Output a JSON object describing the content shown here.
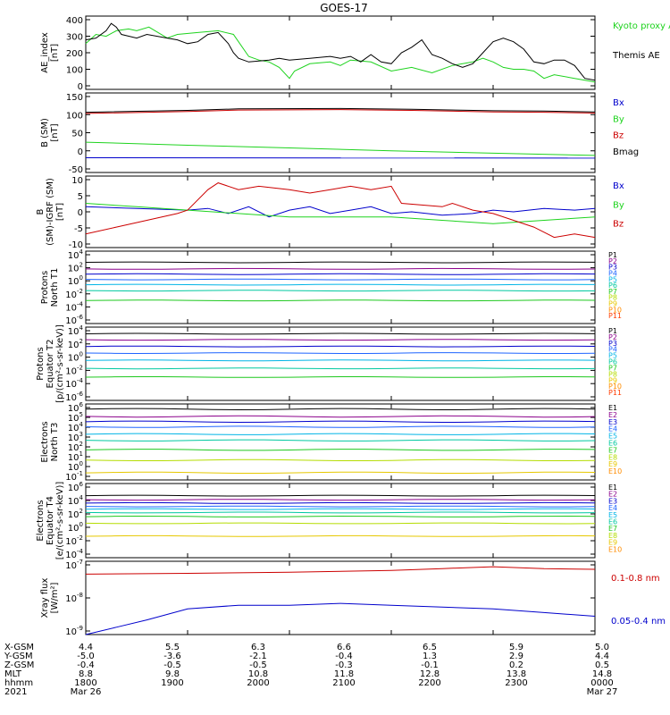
{
  "title": "GOES-17",
  "colors": {
    "black": "#000000",
    "green": "#1ed31e",
    "blue": "#0000cc",
    "red": "#cc0000",
    "p": [
      "#000000",
      "#8b008b",
      "#0000cc",
      "#1e64ff",
      "#00b4e6",
      "#00c8a0",
      "#1ec81e",
      "#b4dc00",
      "#e6c800",
      "#ff8c00",
      "#ff3c00",
      "#cc0000"
    ],
    "e": [
      "#000000",
      "#8b008b",
      "#0000cc",
      "#1e64ff",
      "#00b4e6",
      "#00c8a0",
      "#1ec81e",
      "#b4dc00",
      "#e6c800",
      "#ff8c00",
      "#cc0000"
    ]
  },
  "chart_data": [
    {
      "type": "line",
      "ylabel": "AE_index [nT]",
      "yticks": [
        "400",
        "300",
        "200",
        "100",
        "0"
      ],
      "ylim": [
        0,
        400
      ],
      "legend": [
        "Kyoto proxy AE",
        "Themis AE"
      ],
      "series": [
        {
          "name": "Kyoto proxy AE",
          "color": "green",
          "x": [
            0,
            0.1,
            0.2,
            0.3,
            0.42,
            0.5,
            0.62,
            0.8,
            0.9,
            1.1,
            1.3,
            1.45,
            1.5,
            1.6,
            1.7,
            1.8,
            1.9,
            2.0,
            2.05,
            2.2,
            2.4,
            2.5,
            2.6,
            2.8,
            3.0,
            3.2,
            3.4,
            3.6,
            3.8,
            3.9,
            4.0,
            4.1,
            4.2,
            4.3,
            4.4,
            4.5,
            4.6,
            4.8,
            5.0
          ],
          "values": [
            250,
            300,
            290,
            320,
            330,
            320,
            340,
            280,
            300,
            310,
            320,
            300,
            260,
            180,
            160,
            150,
            120,
            60,
            100,
            140,
            150,
            130,
            160,
            150,
            100,
            120,
            90,
            130,
            150,
            170,
            150,
            120,
            110,
            110,
            100,
            60,
            80,
            60,
            40
          ]
        },
        {
          "name": "Themis AE",
          "color": "black",
          "x": [
            0,
            0.1,
            0.2,
            0.25,
            0.3,
            0.35,
            0.5,
            0.6,
            0.8,
            0.9,
            1.0,
            1.1,
            1.2,
            1.3,
            1.4,
            1.45,
            1.5,
            1.6,
            1.8,
            1.9,
            2.0,
            2.2,
            2.4,
            2.5,
            2.6,
            2.7,
            2.75,
            2.8,
            2.9,
            3.0,
            3.1,
            3.2,
            3.3,
            3.4,
            3.5,
            3.6,
            3.7,
            3.8,
            3.9,
            4.0,
            4.1,
            4.2,
            4.3,
            4.4,
            4.5,
            4.6,
            4.7,
            4.8,
            4.9,
            5.0
          ],
          "values": [
            270,
            280,
            320,
            360,
            340,
            300,
            280,
            300,
            280,
            270,
            250,
            260,
            300,
            310,
            250,
            200,
            170,
            150,
            160,
            170,
            160,
            170,
            180,
            170,
            180,
            150,
            170,
            190,
            150,
            140,
            200,
            230,
            270,
            190,
            170,
            140,
            120,
            140,
            200,
            260,
            280,
            260,
            220,
            150,
            140,
            160,
            160,
            130,
            60,
            50
          ]
        }
      ]
    },
    {
      "type": "line",
      "ylabel": "B (SM) [nT]",
      "yticks": [
        "150",
        "100",
        "50",
        "0",
        "-50"
      ],
      "ylim": [
        -60,
        150
      ],
      "legend": [
        "Bx",
        "By",
        "Bz",
        "Bmag"
      ],
      "series": [
        {
          "name": "Bx",
          "color": "blue",
          "x": [
            0,
            5
          ],
          "values": [
            -21,
            -22
          ]
        },
        {
          "name": "By",
          "color": "green",
          "x": [
            0,
            1,
            2,
            3,
            4,
            5
          ],
          "values": [
            20,
            12,
            5,
            -3,
            -9,
            -15
          ]
        },
        {
          "name": "Bz",
          "color": "red",
          "x": [
            0,
            1,
            1.5,
            2.5,
            3.2,
            4,
            4.5,
            5
          ],
          "values": [
            96,
            101,
            105,
            106,
            104,
            100,
            99,
            97
          ]
        },
        {
          "name": "Bmag",
          "color": "black",
          "x": [
            0,
            1,
            1.5,
            2.5,
            3.2,
            4,
            4.5,
            5
          ],
          "values": [
            99,
            104,
            108,
            109,
            107,
            103,
            102,
            100
          ]
        }
      ]
    },
    {
      "type": "line",
      "ylabel": "B (SM)-IGRF (SM) [nT]",
      "yticks": [
        "10",
        "5",
        "0",
        "-5",
        "-10"
      ],
      "ylim": [
        -11,
        10
      ],
      "legend": [
        "Bx",
        "By",
        "Bz"
      ],
      "series": [
        {
          "name": "Bx",
          "color": "blue",
          "x": [
            0,
            0.5,
            1.0,
            1.2,
            1.4,
            1.6,
            1.8,
            2.0,
            2.2,
            2.4,
            2.6,
            2.8,
            3.0,
            3.2,
            3.5,
            3.8,
            4.0,
            4.2,
            4.5,
            4.8,
            5.0
          ],
          "values": [
            1,
            0.5,
            0,
            0.5,
            -1,
            1,
            -2,
            0,
            1,
            -1,
            0,
            1,
            -1,
            -0.5,
            -1.5,
            -1,
            0,
            -0.5,
            0.5,
            0,
            0.5
          ]
        },
        {
          "name": "By",
          "color": "green",
          "x": [
            0,
            0.5,
            1.0,
            1.5,
            2.0,
            2.5,
            3.0,
            3.5,
            4.0,
            4.5,
            5.0
          ],
          "values": [
            2,
            1,
            0,
            -1,
            -2,
            -2,
            -2,
            -3,
            -4,
            -3,
            -2
          ]
        },
        {
          "name": "Bz",
          "color": "red",
          "x": [
            0,
            0.3,
            0.6,
            0.9,
            1.0,
            1.2,
            1.3,
            1.5,
            1.7,
            2.0,
            2.2,
            2.4,
            2.6,
            2.8,
            3.0,
            3.1,
            3.3,
            3.5,
            3.6,
            3.8,
            4.0,
            4.2,
            4.4,
            4.6,
            4.8,
            5.0
          ],
          "values": [
            -7,
            -5,
            -3,
            -1,
            0,
            6,
            8,
            6,
            7,
            6,
            5,
            6,
            7,
            6,
            7,
            2,
            1.5,
            1,
            2,
            0,
            -1,
            -3,
            -5,
            -8,
            -7,
            -8
          ]
        }
      ]
    },
    {
      "type": "line",
      "ylabel": "Protons North T1",
      "yticks": [
        "10^4",
        "10^2",
        "10^0",
        "10^-2",
        "10^-4",
        "10^-6"
      ],
      "ylim": [
        -6.5,
        4.5
      ],
      "log": true,
      "legend": [
        "P1",
        "P2",
        "P3",
        "P4",
        "P5",
        "P6",
        "P7",
        "P8",
        "P9",
        "P10",
        "P11"
      ],
      "levels": [
        2.8,
        1.8,
        1.0,
        0.2,
        -0.6,
        -1.5,
        -3.0
      ]
    },
    {
      "type": "line",
      "ylabel": "Protons Equator T2 [p/(cm²-s-sr-keV)]",
      "yticks": [
        "10^4",
        "10^2",
        "10^0",
        "10^-2",
        "10^-4",
        "10^-6"
      ],
      "ylim": [
        -6.5,
        4.5
      ],
      "log": true,
      "legend": [
        "P1",
        "P2",
        "P3",
        "P4",
        "P5",
        "P6",
        "P7",
        "P8",
        "P9",
        "P10",
        "P11"
      ],
      "levels": [
        3.5,
        2.6,
        1.6,
        0.6,
        -0.5,
        -1.7,
        -3.0
      ]
    },
    {
      "type": "line",
      "ylabel": "Electrons North T3",
      "yticks": [
        "10^6",
        "10^5",
        "10^4",
        "10^3",
        "10^2",
        "10^1",
        "10^0",
        "10^-1"
      ],
      "ylim": [
        -1.3,
        6
      ],
      "log": true,
      "legend": [
        "E1",
        "E2",
        "E3",
        "E4",
        "E5",
        "E6",
        "E7",
        "E8",
        "E9",
        "E10"
      ],
      "levels": [
        5.5,
        4.8,
        4.3,
        3.8,
        3.1,
        2.5,
        1.6,
        0.6,
        -0.6
      ]
    },
    {
      "type": "line",
      "ylabel": "Electrons Equator T4 [e/(cm²-s-sr-keV)]",
      "yticks": [
        "10^6",
        "10^4",
        "10^2",
        "10^0",
        "10^-2",
        "10^-4"
      ],
      "ylim": [
        -4.5,
        6.5
      ],
      "log": true,
      "legend": [
        "E1",
        "E2",
        "E3",
        "E4",
        "E5",
        "E6",
        "E7",
        "E8",
        "E9",
        "E10"
      ],
      "levels": [
        4.7,
        4.1,
        3.6,
        3.1,
        2.7,
        2.2,
        1.6,
        0.6,
        -1.3
      ]
    },
    {
      "type": "line",
      "ylabel": "Xray flux [W/m²]",
      "yticks": [
        "10^-7",
        "10^-8",
        "10^-9"
      ],
      "ylim": [
        -9,
        -7
      ],
      "log": true,
      "legend": [
        "0.1-0.8 nm",
        "0.05-0.4 nm"
      ],
      "series": [
        {
          "name": "0.1-0.8 nm",
          "color": "red",
          "x": [
            0,
            1,
            2,
            3,
            3.5,
            4,
            4.5,
            5
          ],
          "values": [
            -7.35,
            -7.33,
            -7.3,
            -7.25,
            -7.2,
            -7.15,
            -7.2,
            -7.22
          ]
        },
        {
          "name": "0.05-0.4 nm",
          "color": "blue",
          "x": [
            0,
            0.3,
            0.6,
            1.0,
            1.5,
            2.0,
            2.5,
            3.0,
            3.5,
            4.0,
            4.5,
            5.0
          ],
          "values": [
            -9.0,
            -8.8,
            -8.6,
            -8.3,
            -8.2,
            -8.2,
            -8.15,
            -8.2,
            -8.25,
            -8.3,
            -8.4,
            -8.5
          ]
        }
      ]
    }
  ],
  "axis": {
    "rows": [
      {
        "label": "X-GSM",
        "values": [
          "4.4",
          "5.5",
          "6.3",
          "6.6",
          "6.5",
          "5.9",
          "5.0"
        ]
      },
      {
        "label": "Y-GSM",
        "values": [
          "-5.0",
          "-3.6",
          "-2.1",
          "-0.4",
          "1.3",
          "2.9",
          "4.4"
        ]
      },
      {
        "label": "Z-GSM",
        "values": [
          "-0.4",
          "-0.5",
          "-0.5",
          "-0.3",
          "-0.1",
          "0.2",
          "0.5"
        ]
      },
      {
        "label": "MLT",
        "values": [
          "8.8",
          "9.8",
          "10.8",
          "11.8",
          "12.8",
          "13.8",
          "14.8"
        ]
      },
      {
        "label": "hhmm",
        "values": [
          "1800",
          "1900",
          "2000",
          "2100",
          "2200",
          "2300",
          "0000"
        ]
      },
      {
        "label": "2021",
        "values": [
          "Mar 26",
          "",
          "",
          "",
          "",
          "",
          "Mar 27"
        ]
      }
    ]
  }
}
